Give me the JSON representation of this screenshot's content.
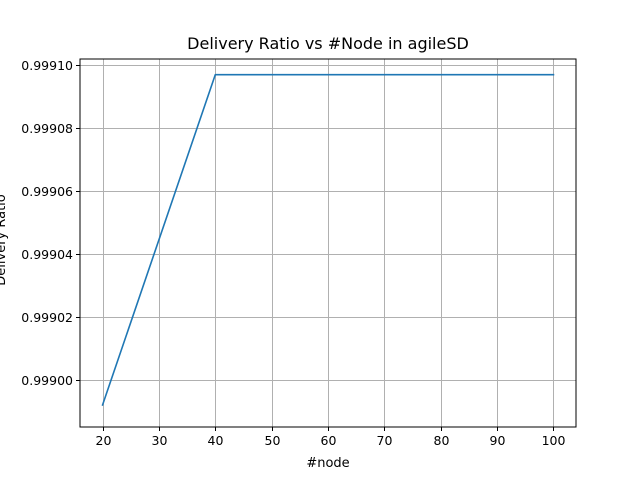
{
  "chart_data": {
    "type": "line",
    "title": "Delivery Ratio vs #Node in agileSD",
    "xlabel": "#node",
    "ylabel": "Delivery Ratio",
    "x": [
      20,
      40,
      60,
      80,
      100
    ],
    "series": [
      {
        "values": [
          0.998992,
          0.999097,
          0.999097,
          0.999097,
          0.999097
        ],
        "color": "#1f77b4"
      }
    ],
    "xlim": [
      16,
      104
    ],
    "ylim": [
      0.998985,
      0.999102
    ],
    "xticks": [
      20,
      30,
      40,
      50,
      60,
      70,
      80,
      90,
      100
    ],
    "xtick_labels": [
      "20",
      "30",
      "40",
      "50",
      "60",
      "70",
      "80",
      "90",
      "100"
    ],
    "yticks": [
      0.999,
      0.99902,
      0.99904,
      0.99906,
      0.99908,
      0.9991
    ],
    "ytick_labels": [
      "0.99900",
      "0.99902",
      "0.99904",
      "0.99906",
      "0.99908",
      "0.99910"
    ],
    "grid": true
  }
}
